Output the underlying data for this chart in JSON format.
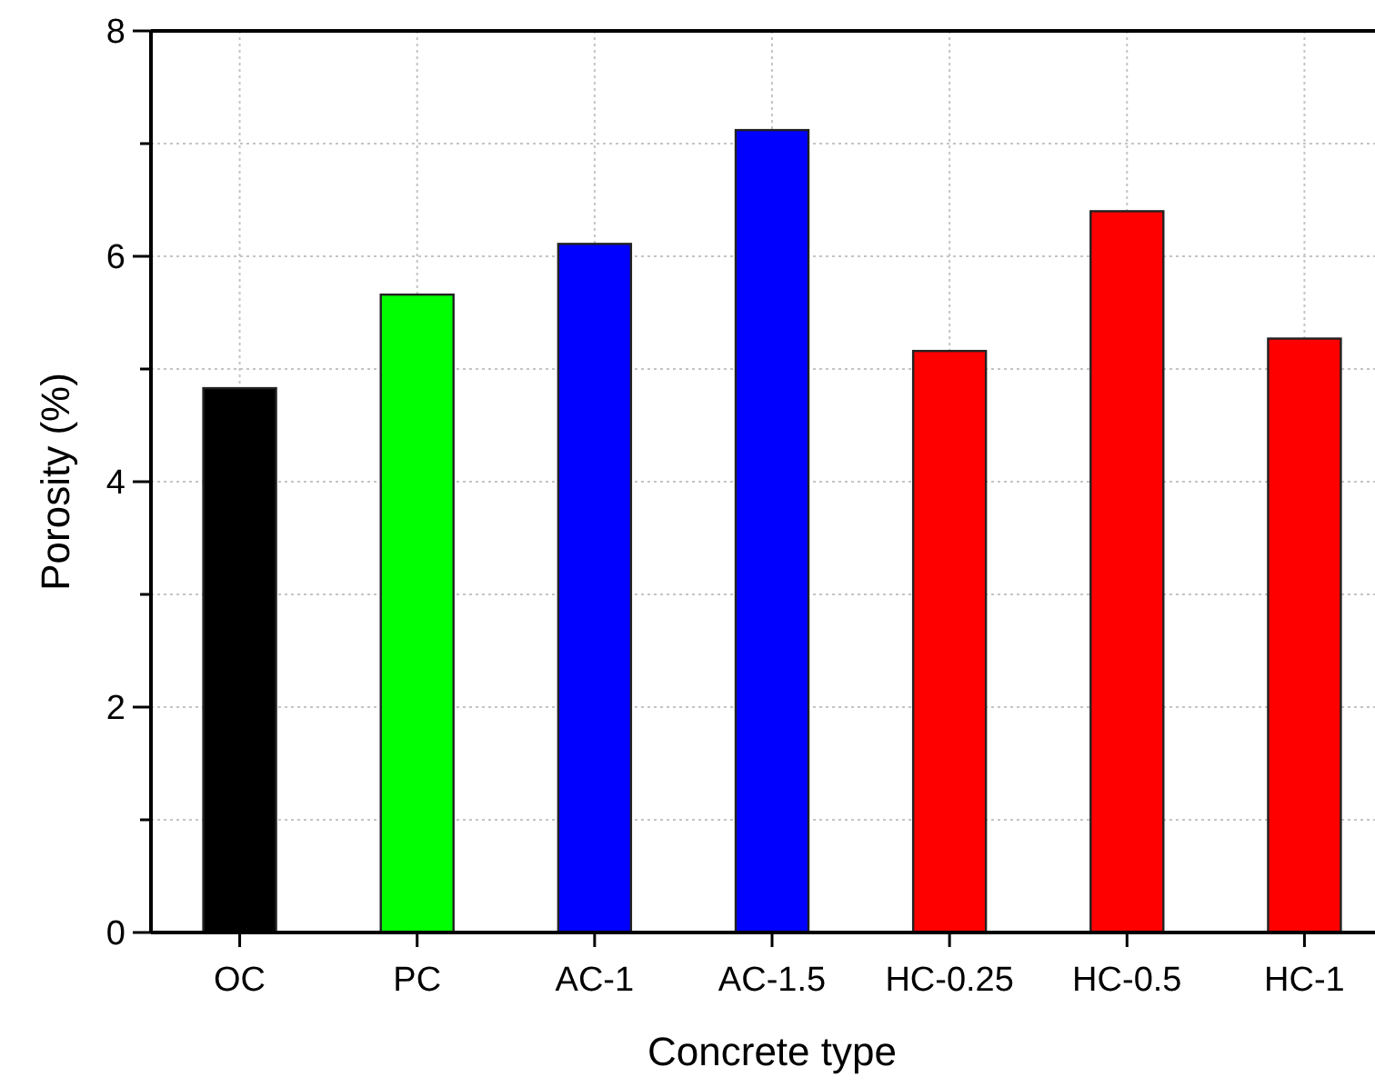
{
  "chart_data": {
    "type": "bar",
    "xlabel": "Concrete type",
    "ylabel": "Porosity (%)",
    "categories": [
      "OC",
      "PC",
      "AC-1",
      "AC-1.5",
      "HC-0.25",
      "HC-0.5",
      "HC-1"
    ],
    "values": [
      4.83,
      5.66,
      6.11,
      7.12,
      5.16,
      6.4,
      5.27
    ],
    "colors": [
      "#000000",
      "#00ff00",
      "#0000ff",
      "#0000ff",
      "#ff0000",
      "#ff0000",
      "#ff0000"
    ],
    "ylim": [
      0,
      8
    ],
    "yticks": [
      0,
      {
        "value": 1,
        "label": null
      },
      2,
      {
        "value": 3,
        "label": null
      },
      4,
      {
        "value": 5,
        "label": null
      },
      6,
      {
        "value": 7,
        "label": null
      },
      8
    ],
    "grid": true
  }
}
